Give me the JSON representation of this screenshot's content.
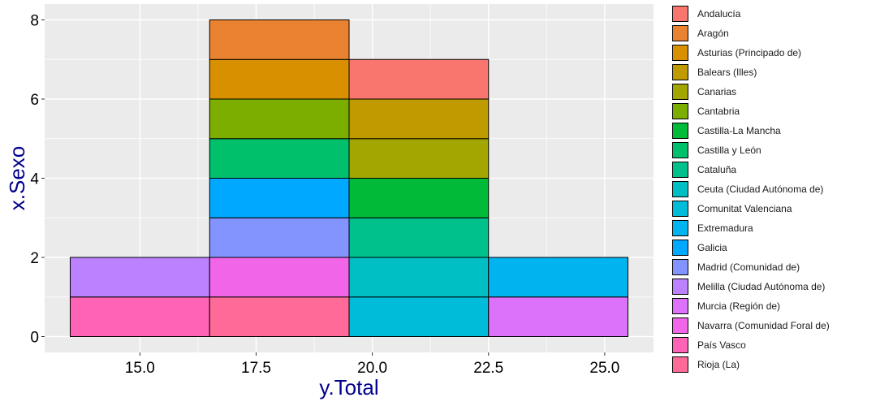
{
  "chart_data": {
    "type": "bar",
    "subtype": "stacked-histogram",
    "xlabel": "y.Total",
    "ylabel": "x.Sexo",
    "xlim": [
      12.95,
      26.05
    ],
    "ylim": [
      -0.4,
      8.4
    ],
    "x_ticks": [
      15.0,
      17.5,
      20.0,
      22.5,
      25.0
    ],
    "x_tick_labels": [
      "15.0",
      "17.5",
      "20.0",
      "22.5",
      "25.0"
    ],
    "y_ticks": [
      0,
      2,
      4,
      6,
      8
    ],
    "y_tick_labels": [
      "0",
      "2",
      "4",
      "6",
      "8"
    ],
    "bins": [
      {
        "xmin": 13.5,
        "xmax": 16.5,
        "total": 2
      },
      {
        "xmin": 16.5,
        "xmax": 19.5,
        "total": 8
      },
      {
        "xmin": 19.5,
        "xmax": 22.5,
        "total": 7
      },
      {
        "xmin": 22.5,
        "xmax": 25.5,
        "total": 2
      }
    ],
    "segments": [
      {
        "series": "País Vasco",
        "xmin": 13.5,
        "xmax": 16.5,
        "ymin": 0,
        "ymax": 1
      },
      {
        "series": "Melilla (Ciudad Autónoma de)",
        "xmin": 13.5,
        "xmax": 16.5,
        "ymin": 1,
        "ymax": 2
      },
      {
        "series": "Rioja (La)",
        "xmin": 16.5,
        "xmax": 19.5,
        "ymin": 0,
        "ymax": 1
      },
      {
        "series": "Navarra (Comunidad Foral de)",
        "xmin": 16.5,
        "xmax": 19.5,
        "ymin": 1,
        "ymax": 2
      },
      {
        "series": "Madrid (Comunidad de)",
        "xmin": 16.5,
        "xmax": 19.5,
        "ymin": 2,
        "ymax": 3
      },
      {
        "series": "Galicia",
        "xmin": 16.5,
        "xmax": 19.5,
        "ymin": 3,
        "ymax": 4
      },
      {
        "series": "Castilla y León",
        "xmin": 16.5,
        "xmax": 19.5,
        "ymin": 4,
        "ymax": 5
      },
      {
        "series": "Cantabria",
        "xmin": 16.5,
        "xmax": 19.5,
        "ymin": 5,
        "ymax": 6
      },
      {
        "series": "Asturias (Principado de)",
        "xmin": 16.5,
        "xmax": 19.5,
        "ymin": 6,
        "ymax": 7
      },
      {
        "series": "Aragón",
        "xmin": 16.5,
        "xmax": 19.5,
        "ymin": 7,
        "ymax": 8
      },
      {
        "series": "Comunitat Valenciana",
        "xmin": 19.5,
        "xmax": 22.5,
        "ymin": 0,
        "ymax": 1
      },
      {
        "series": "Ceuta (Ciudad Autónoma de)",
        "xmin": 19.5,
        "xmax": 22.5,
        "ymin": 1,
        "ymax": 2
      },
      {
        "series": "Cataluña",
        "xmin": 19.5,
        "xmax": 22.5,
        "ymin": 2,
        "ymax": 3
      },
      {
        "series": "Castilla-La Mancha",
        "xmin": 19.5,
        "xmax": 22.5,
        "ymin": 3,
        "ymax": 4
      },
      {
        "series": "Canarias",
        "xmin": 19.5,
        "xmax": 22.5,
        "ymin": 4,
        "ymax": 5
      },
      {
        "series": "Balears (Illes)",
        "xmin": 19.5,
        "xmax": 22.5,
        "ymin": 5,
        "ymax": 6
      },
      {
        "series": "Andalucía",
        "xmin": 19.5,
        "xmax": 22.5,
        "ymin": 6,
        "ymax": 7
      },
      {
        "series": "Murcia (Región de)",
        "xmin": 22.5,
        "xmax": 25.5,
        "ymin": 0,
        "ymax": 1
      },
      {
        "series": "Extremadura",
        "xmin": 22.5,
        "xmax": 25.5,
        "ymin": 1,
        "ymax": 2
      }
    ],
    "legend": [
      {
        "name": "Andalucía",
        "color": "#F8766D"
      },
      {
        "name": "Aragón",
        "color": "#EA8331"
      },
      {
        "name": "Asturias (Principado de)",
        "color": "#D89000"
      },
      {
        "name": "Balears (Illes)",
        "color": "#C09B00"
      },
      {
        "name": "Canarias",
        "color": "#A3A500"
      },
      {
        "name": "Cantabria",
        "color": "#7CAE00"
      },
      {
        "name": "Castilla-La Mancha",
        "color": "#00BA38"
      },
      {
        "name": "Castilla y León",
        "color": "#00C06B"
      },
      {
        "name": "Cataluña",
        "color": "#00C08B"
      },
      {
        "name": "Ceuta (Ciudad Autónoma de)",
        "color": "#00BFC4"
      },
      {
        "name": "Comunitat Valenciana",
        "color": "#00BCD8"
      },
      {
        "name": "Extremadura",
        "color": "#00B4F0"
      },
      {
        "name": "Galicia",
        "color": "#00A9FF"
      },
      {
        "name": "Madrid (Comunidad de)",
        "color": "#8494FF"
      },
      {
        "name": "Melilla (Ciudad Autónoma de)",
        "color": "#BB81FF"
      },
      {
        "name": "Murcia (Región de)",
        "color": "#DC71FA"
      },
      {
        "name": "Navarra (Comunidad Foral de)",
        "color": "#F166E8"
      },
      {
        "name": "País Vasco",
        "color": "#FF63B6"
      },
      {
        "name": "Rioja (La)",
        "color": "#FF6A98"
      }
    ],
    "legend_position": "right",
    "grid": true,
    "panel_background": "#EBEBEB",
    "grid_color": "#FFFFFF",
    "axis_title_color": "#00008B",
    "bar_outline": "#000000"
  }
}
